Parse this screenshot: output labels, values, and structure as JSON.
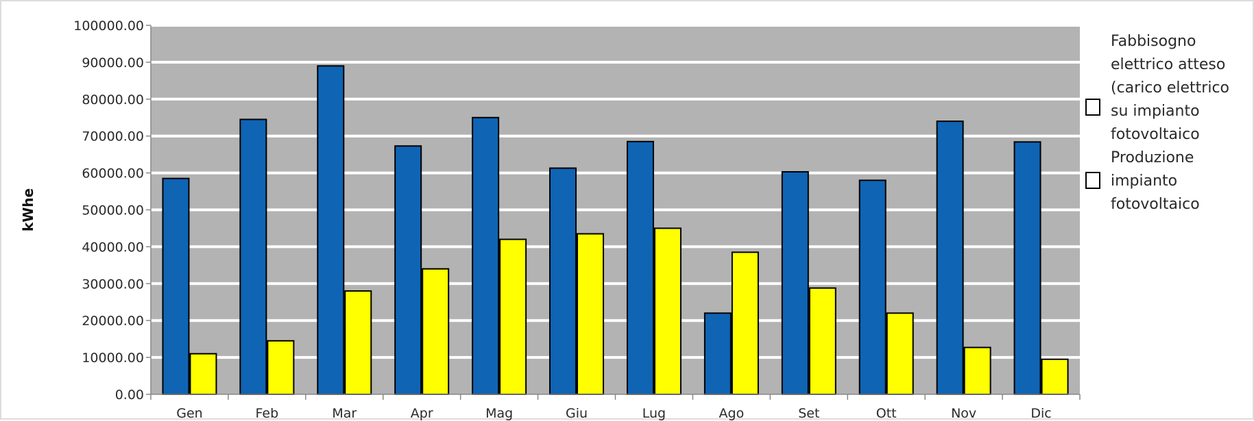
{
  "chart_data": {
    "type": "bar",
    "categories": [
      "Gen",
      "Feb",
      "Mar",
      "Apr",
      "Mag",
      "Giu",
      "Lug",
      "Ago",
      "Set",
      "Ott",
      "Nov",
      "Dic"
    ],
    "series": [
      {
        "name": "Fabbisogno elettrico atteso (carico elettrico su impianto fotovoltaico",
        "color": "#0f64b4",
        "values": [
          58500,
          74500,
          89000,
          67300,
          75000,
          61300,
          68500,
          22000,
          60300,
          58000,
          74000,
          68400
        ]
      },
      {
        "name": "Produzione impianto fotovoltaico",
        "color": "#ffff00",
        "values": [
          11000,
          14500,
          28000,
          34000,
          42000,
          43500,
          45000,
          38500,
          28800,
          22000,
          12700,
          9500
        ]
      }
    ],
    "ylabel": "kWhe",
    "ylim": [
      0,
      100000
    ],
    "yticks": [
      "0.00",
      "10000.00",
      "20000.00",
      "30000.00",
      "40000.00",
      "50000.00",
      "60000.00",
      "70000.00",
      "80000.00",
      "90000.00",
      "100000.00"
    ],
    "grid": true,
    "legend": "right"
  }
}
